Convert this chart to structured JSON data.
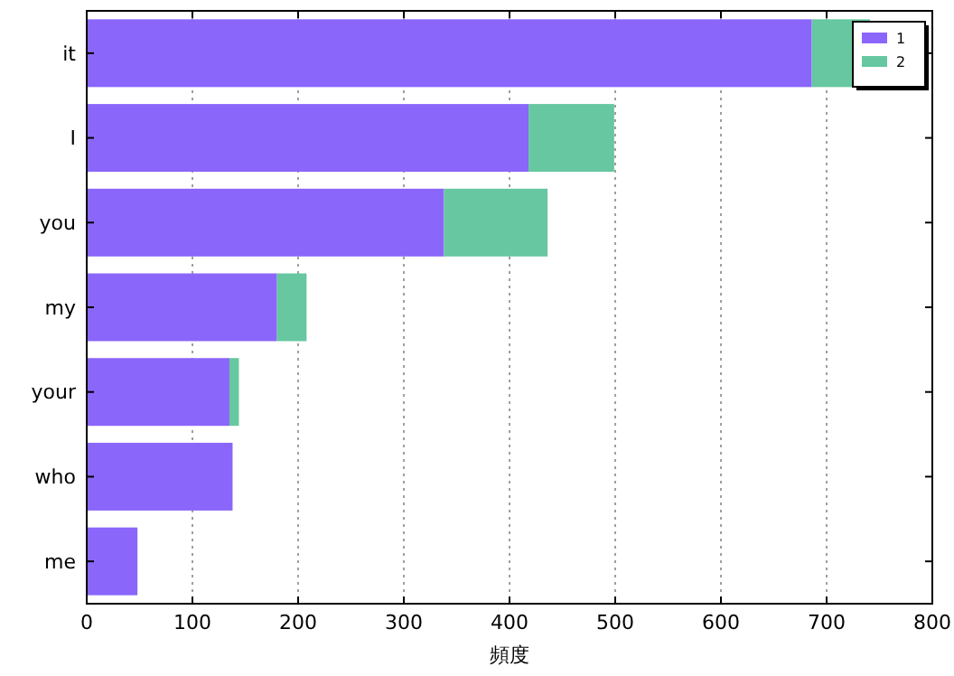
{
  "chart_data": {
    "type": "bar",
    "orientation": "horizontal",
    "stacked": true,
    "xlabel": "頻度",
    "categories": [
      "it",
      "I",
      "you",
      "my",
      "your",
      "who",
      "me"
    ],
    "series": [
      {
        "name": "1",
        "color": "#8a66fb",
        "values": [
          686,
          418,
          338,
          180,
          135,
          138,
          48
        ]
      },
      {
        "name": "2",
        "color": "#66c7a0",
        "values": [
          55,
          81,
          98,
          28,
          9,
          0,
          0
        ]
      }
    ],
    "xlim": [
      0,
      800
    ],
    "xticks": [
      0,
      100,
      200,
      300,
      400,
      500,
      600,
      700,
      800
    ],
    "grid": "x",
    "legend": "top right"
  }
}
